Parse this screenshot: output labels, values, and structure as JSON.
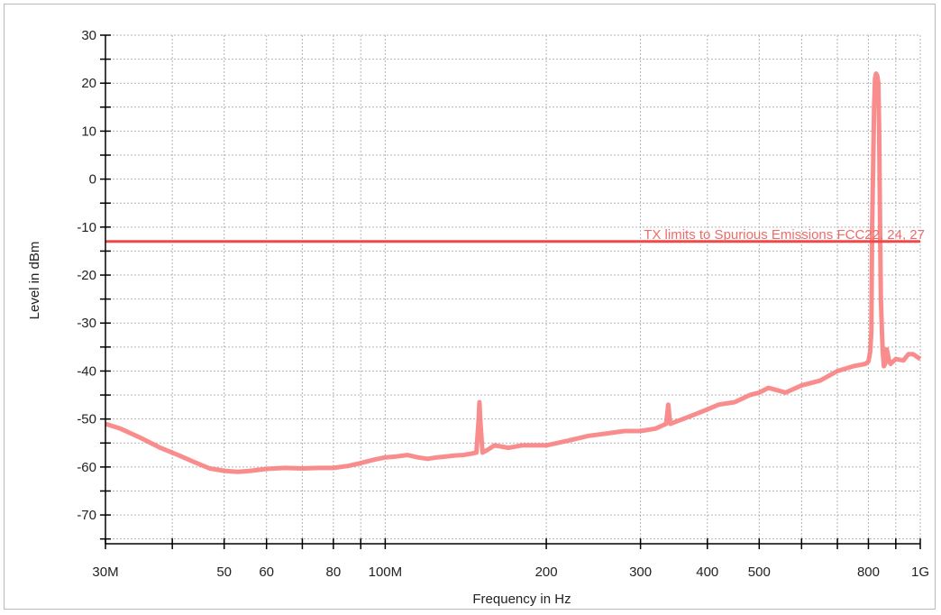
{
  "chart_data": {
    "type": "line",
    "title": "",
    "xlabel": "Frequency in Hz",
    "ylabel": "Level in dBm",
    "x_scale": "log",
    "xlim": [
      30000000,
      1000000000
    ],
    "ylim": [
      -76,
      30
    ],
    "grid": true,
    "legend": "none",
    "x_ticks": [
      {
        "value": 30000000,
        "label": "30M"
      },
      {
        "value": 50000000,
        "label": "50"
      },
      {
        "value": 60000000,
        "label": "60"
      },
      {
        "value": 80000000,
        "label": "80"
      },
      {
        "value": 100000000,
        "label": "100M"
      },
      {
        "value": 200000000,
        "label": "200"
      },
      {
        "value": 300000000,
        "label": "300"
      },
      {
        "value": 400000000,
        "label": "400"
      },
      {
        "value": 500000000,
        "label": "500"
      },
      {
        "value": 800000000,
        "label": "800"
      },
      {
        "value": 1000000000,
        "label": "1G"
      }
    ],
    "x_minor_ticks": [
      40000000,
      70000000,
      90000000,
      600000000,
      700000000,
      900000000
    ],
    "y_ticks": [
      30,
      20,
      10,
      0,
      -10,
      -20,
      -30,
      -40,
      -50,
      -60,
      -70
    ],
    "limit_line": {
      "label": "TX limits to Spurious Emissions FCC22, 24, 27",
      "value": -13,
      "color": "#f04848"
    },
    "series": [
      {
        "color": "#f88080",
        "points": [
          [
            30000000,
            -51
          ],
          [
            32000000,
            -52
          ],
          [
            35000000,
            -54
          ],
          [
            38000000,
            -56
          ],
          [
            41000000,
            -57.5
          ],
          [
            44000000,
            -59
          ],
          [
            47000000,
            -60.3
          ],
          [
            50000000,
            -60.8
          ],
          [
            53000000,
            -61
          ],
          [
            56000000,
            -60.8
          ],
          [
            60000000,
            -60.4
          ],
          [
            65000000,
            -60.2
          ],
          [
            70000000,
            -60.3
          ],
          [
            75000000,
            -60.2
          ],
          [
            80000000,
            -60.2
          ],
          [
            85000000,
            -59.8
          ],
          [
            90000000,
            -59.2
          ],
          [
            95000000,
            -58.5
          ],
          [
            100000000,
            -58
          ],
          [
            105000000,
            -57.8
          ],
          [
            110000000,
            -57.5
          ],
          [
            115000000,
            -58
          ],
          [
            120000000,
            -58.3
          ],
          [
            125000000,
            -58
          ],
          [
            130000000,
            -57.8
          ],
          [
            135000000,
            -57.6
          ],
          [
            140000000,
            -57.5
          ],
          [
            145000000,
            -57.2
          ],
          [
            148000000,
            -57
          ],
          [
            149500000,
            -50
          ],
          [
            150000000,
            -46.5
          ],
          [
            150500000,
            -50
          ],
          [
            152000000,
            -57
          ],
          [
            155000000,
            -56.5
          ],
          [
            160000000,
            -55.5
          ],
          [
            170000000,
            -56
          ],
          [
            180000000,
            -55.5
          ],
          [
            190000000,
            -55.5
          ],
          [
            200000000,
            -55.5
          ],
          [
            220000000,
            -54.5
          ],
          [
            240000000,
            -53.5
          ],
          [
            260000000,
            -53
          ],
          [
            280000000,
            -52.5
          ],
          [
            300000000,
            -52.5
          ],
          [
            320000000,
            -52
          ],
          [
            335000000,
            -51
          ],
          [
            338000000,
            -47
          ],
          [
            341000000,
            -51
          ],
          [
            360000000,
            -50
          ],
          [
            380000000,
            -49
          ],
          [
            400000000,
            -48
          ],
          [
            420000000,
            -47
          ],
          [
            450000000,
            -46.5
          ],
          [
            480000000,
            -45
          ],
          [
            500000000,
            -44.5
          ],
          [
            520000000,
            -43.5
          ],
          [
            540000000,
            -44
          ],
          [
            560000000,
            -44.5
          ],
          [
            600000000,
            -43
          ],
          [
            650000000,
            -42
          ],
          [
            700000000,
            -40
          ],
          [
            750000000,
            -39
          ],
          [
            790000000,
            -38.5
          ],
          [
            800000000,
            -38
          ],
          [
            806000000,
            -36
          ],
          [
            810000000,
            -32
          ],
          [
            813000000,
            -10
          ],
          [
            817000000,
            5
          ],
          [
            820000000,
            15
          ],
          [
            823000000,
            21
          ],
          [
            827000000,
            22
          ],
          [
            831000000,
            21.5
          ],
          [
            835000000,
            20
          ],
          [
            838000000,
            10
          ],
          [
            841000000,
            -10
          ],
          [
            844000000,
            -25
          ],
          [
            848000000,
            -32
          ],
          [
            851000000,
            -36
          ],
          [
            855000000,
            -39
          ],
          [
            860000000,
            -38.5
          ],
          [
            866000000,
            -35.5
          ],
          [
            875000000,
            -38
          ],
          [
            880000000,
            -38.5
          ],
          [
            900000000,
            -37.5
          ],
          [
            930000000,
            -37.8
          ],
          [
            950000000,
            -36.5
          ],
          [
            970000000,
            -36.5
          ],
          [
            985000000,
            -37
          ],
          [
            1000000000,
            -37.5
          ]
        ]
      }
    ]
  }
}
